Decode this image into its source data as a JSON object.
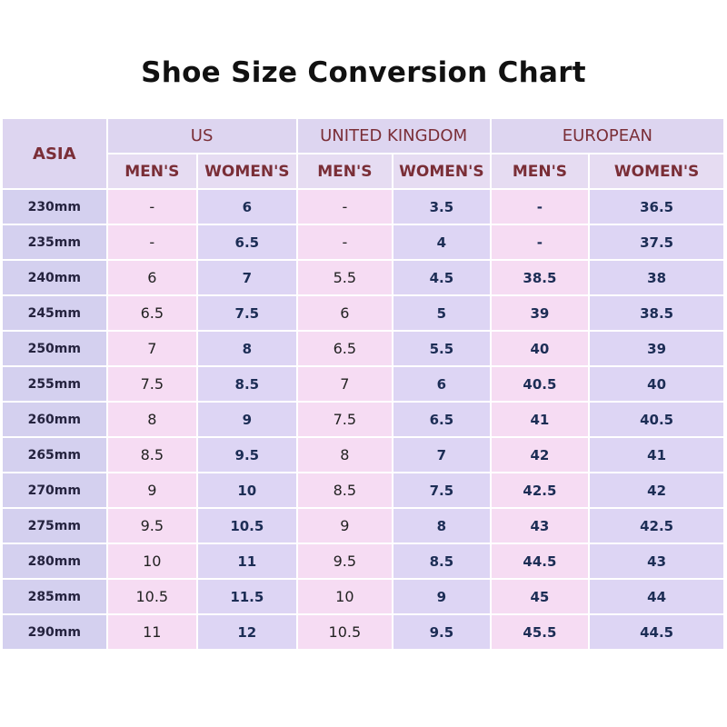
{
  "title": "Shoe Size Conversion Chart",
  "headers": {
    "asia": "ASIA",
    "groups": [
      "US",
      "UNITED KINGDOM",
      "EUROPEAN"
    ],
    "subs": [
      "MEN'S",
      "WOMEN'S",
      "MEN'S",
      "WOMEN'S",
      "MEN'S",
      "WOMEN'S"
    ]
  },
  "rows": [
    [
      "230mm",
      "-",
      "6",
      "-",
      "3.5",
      "-",
      "36.5"
    ],
    [
      "235mm",
      "-",
      "6.5",
      "-",
      "4",
      "-",
      "37.5"
    ],
    [
      "240mm",
      "6",
      "7",
      "5.5",
      "4.5",
      "38.5",
      "38"
    ],
    [
      "245mm",
      "6.5",
      "7.5",
      "6",
      "5",
      "39",
      "38.5"
    ],
    [
      "250mm",
      "7",
      "8",
      "6.5",
      "5.5",
      "40",
      "39"
    ],
    [
      "255mm",
      "7.5",
      "8.5",
      "7",
      "6",
      "40.5",
      "40"
    ],
    [
      "260mm",
      "8",
      "9",
      "7.5",
      "6.5",
      "41",
      "40.5"
    ],
    [
      "265mm",
      "8.5",
      "9.5",
      "8",
      "7",
      "42",
      "41"
    ],
    [
      "270mm",
      "9",
      "10",
      "8.5",
      "7.5",
      "42.5",
      "42"
    ],
    [
      "275mm",
      "9.5",
      "10.5",
      "9",
      "8",
      "43",
      "42.5"
    ],
    [
      "280mm",
      "10",
      "11",
      "9.5",
      "8.5",
      "44.5",
      "43"
    ],
    [
      "285mm",
      "10.5",
      "11.5",
      "10",
      "9",
      "45",
      "44"
    ],
    [
      "290mm",
      "11",
      "12",
      "10.5",
      "9.5",
      "45.5",
      "44.5"
    ]
  ],
  "colors": {
    "header_text": "#7a2e37",
    "header_bg": "#ddd5f0",
    "cell_pink": "#f6dcf3",
    "cell_lavender": "#ddd5f4",
    "cell_text": "#1c2d55"
  }
}
